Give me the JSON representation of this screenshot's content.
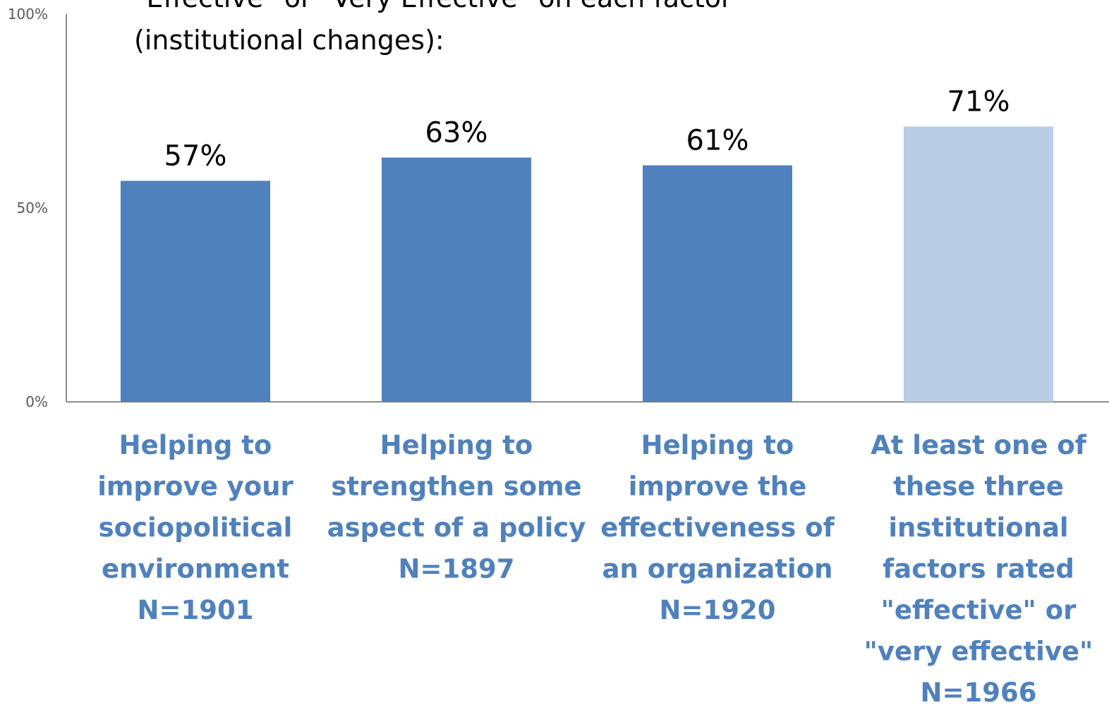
{
  "chart_data": {
    "type": "bar",
    "title_lines": [
      "\"Effective\" or \"Very Effective\" on each factor",
      "(institutional changes):"
    ],
    "categories": [
      [
        "Helping to",
        "improve your",
        "sociopolitical",
        "environment",
        "N=1901"
      ],
      [
        "Helping to",
        "strengthen some",
        "aspect of a policy",
        "N=1897"
      ],
      [
        "Helping to",
        "improve the",
        "effectiveness of",
        "an organization",
        "N=1920"
      ],
      [
        "At least one of",
        "these three",
        "institutional",
        "factors rated",
        "\"effective\" or",
        "\"very effective\"",
        "N=1966"
      ]
    ],
    "values": [
      57,
      63,
      61,
      71
    ],
    "data_labels": [
      "57%",
      "63%",
      "61%",
      "71%"
    ],
    "y_ticks": [
      {
        "value": 0,
        "label": "0%"
      },
      {
        "value": 50,
        "label": "50%"
      },
      {
        "value": 100,
        "label": "100%"
      }
    ],
    "ylim": [
      0,
      100
    ],
    "grid": false,
    "legend": "none",
    "colors": {
      "bar": "#4f81bd",
      "highlight_bar": "#b9cde5",
      "category_label": "#4f81bd",
      "axis": "#8c8c8c"
    },
    "highlight_index": 3
  }
}
